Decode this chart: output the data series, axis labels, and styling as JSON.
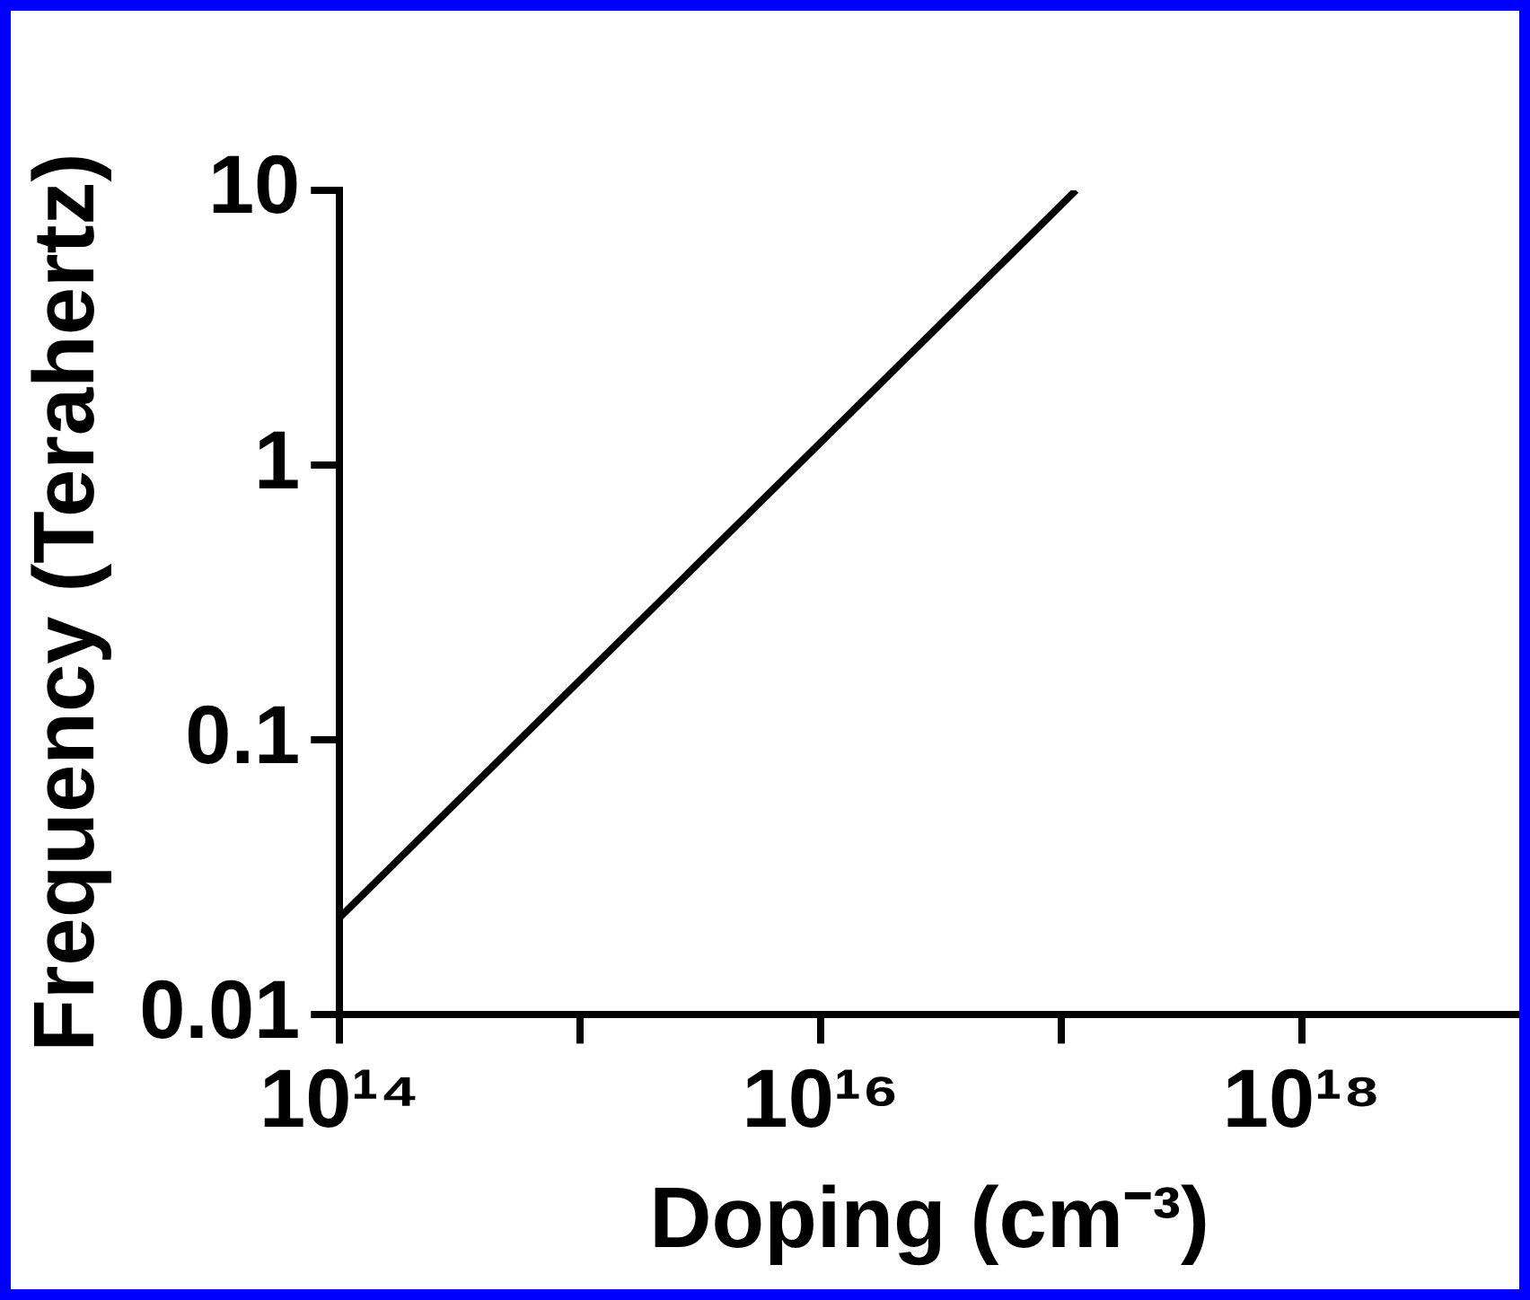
{
  "chart_data": {
    "type": "line",
    "xlabel": "Doping (cm⁻³)",
    "ylabel": "Frequency (Terahertz)",
    "x": [
      100000000000000.0,
      1.15e+17
    ],
    "series": [
      {
        "color": "#000000",
        "values": [
          0.0226,
          10
        ]
      }
    ],
    "log": "xy",
    "xlim": [
      100000000000000.0,
      8e+18
    ],
    "xticks": [
      {
        "value": 100000000000000.0,
        "label": "10¹⁴"
      },
      {
        "value": 1000000000000000.0,
        "label": null
      },
      {
        "value": 1e+16,
        "label": "10¹⁶"
      },
      {
        "value": 1e+17,
        "label": null
      },
      {
        "value": 1e+18,
        "label": "10¹⁸"
      }
    ],
    "ylim": [
      0.01,
      10
    ],
    "yticks": [
      0.01,
      0.1,
      1,
      10
    ],
    "grid": false,
    "legend": false,
    "marker": "none",
    "line_style": "solid"
  }
}
